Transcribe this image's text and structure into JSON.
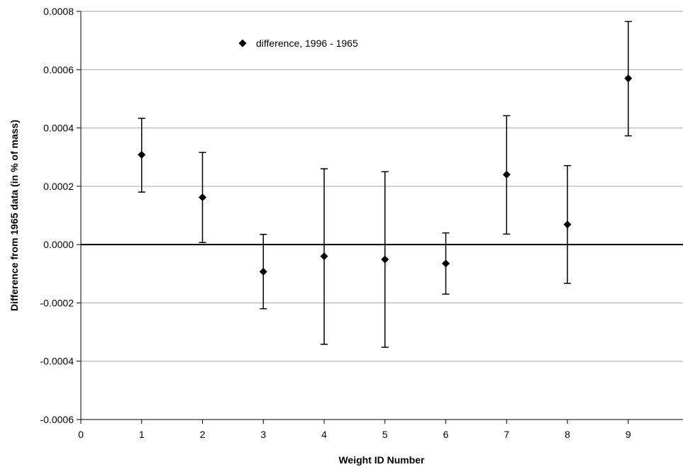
{
  "chart_data": {
    "type": "scatter",
    "title": "",
    "xlabel": "Weight ID Number",
    "ylabel": "Difference from 1965 data (in % of mass)",
    "xlim": [
      0,
      9.9
    ],
    "ylim": [
      -0.0006,
      0.0008
    ],
    "x_ticks": [
      0,
      1,
      2,
      3,
      4,
      5,
      6,
      7,
      8,
      9
    ],
    "x_tick_labels": [
      "0",
      "1",
      "2",
      "3",
      "4",
      "5",
      "6",
      "7",
      "8",
      "9"
    ],
    "y_ticks": [
      -0.0006,
      -0.0004,
      -0.0002,
      0.0,
      0.0002,
      0.0004,
      0.0006,
      0.0008
    ],
    "y_tick_labels": [
      "-0.0006",
      "-0.0004",
      "-0.0002",
      "0.0000",
      "0.0002",
      "0.0004",
      "0.0006",
      "0.0008"
    ],
    "grid": "horizontal",
    "legend": {
      "position": "top-left",
      "entries": [
        {
          "label": "difference, 1996 - 1965",
          "marker": "diamond"
        }
      ]
    },
    "series": [
      {
        "name": "difference, 1996 - 1965",
        "marker": "diamond",
        "color": "#000000",
        "points": [
          {
            "x": 1,
            "y": 0.000308,
            "err_low": 0.00018,
            "err_high": 0.000433
          },
          {
            "x": 2,
            "y": 0.000162,
            "err_low": 7e-06,
            "err_high": 0.000316
          },
          {
            "x": 3,
            "y": -9.3e-05,
            "err_low": -0.00022,
            "err_high": 3.5e-05
          },
          {
            "x": 4,
            "y": -4e-05,
            "err_low": -0.000342,
            "err_high": 0.00026
          },
          {
            "x": 5,
            "y": -5.1e-05,
            "err_low": -0.000352,
            "err_high": 0.00025
          },
          {
            "x": 6,
            "y": -6.5e-05,
            "err_low": -0.00017,
            "err_high": 4e-05
          },
          {
            "x": 7,
            "y": 0.00024,
            "err_low": 3.6e-05,
            "err_high": 0.000442
          },
          {
            "x": 8,
            "y": 6.9e-05,
            "err_low": -0.000133,
            "err_high": 0.000271
          },
          {
            "x": 9,
            "y": 0.00057,
            "err_low": 0.000373,
            "err_high": 0.000765
          }
        ]
      }
    ]
  }
}
